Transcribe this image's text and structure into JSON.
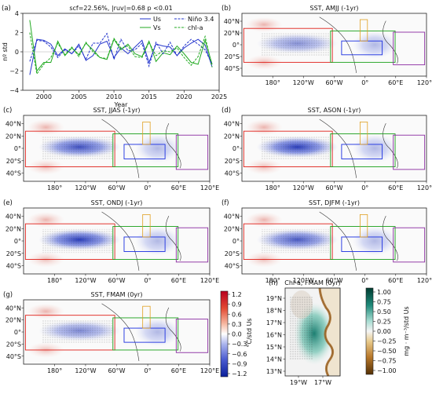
{
  "chart_data": [
    {
      "type": "line",
      "panel_label": "(a)",
      "title": "scf=22.56%, |ruv|=0.68 p <0.01",
      "xlabel": "Year",
      "ylabel": "nº std",
      "xlim": [
        1997,
        2025
      ],
      "ylim": [
        -4,
        4
      ],
      "xticks": [
        "2000",
        "2005",
        "2010",
        "2015",
        "2020",
        "2025"
      ],
      "yticks": [
        "−4",
        "−2",
        "0",
        "2",
        "4"
      ],
      "x": [
        1998,
        1999,
        2000,
        2001,
        2002,
        2003,
        2004,
        2005,
        2006,
        2007,
        2008,
        2009,
        2010,
        2011,
        2012,
        2013,
        2014,
        2015,
        2016,
        2017,
        2018,
        2019,
        2020,
        2021,
        2022,
        2023,
        2024
      ],
      "series": [
        {
          "name": "Us",
          "color": "#2233cc",
          "dash": "solid",
          "values": [
            -2.4,
            1.3,
            1.2,
            0.8,
            -0.4,
            0.3,
            -0.2,
            0.8,
            -0.9,
            -0.4,
            0.8,
            1.1,
            -0.6,
            0.4,
            -0.2,
            0.5,
            1.2,
            -1.1,
            0.8,
            0.6,
            0.5,
            -0.4,
            0.4,
            0.9,
            1.3,
            0.7,
            -1.6
          ]
        },
        {
          "name": "Vs",
          "color": "#22aa22",
          "dash": "solid",
          "values": [
            3.3,
            -2.0,
            -1.1,
            -1.1,
            1.1,
            -0.4,
            0.4,
            -0.3,
            0.9,
            0.2,
            -0.6,
            -0.8,
            1.3,
            0.2,
            0.8,
            -0.2,
            -0.5,
            1.1,
            -1.0,
            -0.1,
            -0.3,
            0.6,
            -0.2,
            -1.1,
            -1.3,
            1.2,
            -1.3
          ]
        },
        {
          "name": "Niño 3.4",
          "color": "#2233cc",
          "dash": "dashed",
          "values": [
            -1.0,
            1.2,
            1.1,
            0.5,
            -0.6,
            0.2,
            -0.2,
            0.6,
            -0.8,
            0.9,
            0.9,
            1.9,
            -0.8,
            1.3,
            0.1,
            0.2,
            0.9,
            -1.5,
            1.0,
            -0.2,
            1.0,
            -0.4,
            0.6,
            1.3,
            0.8,
            0.2,
            -1.3
          ]
        },
        {
          "name": "chl-a",
          "color": "#22aa22",
          "dash": "dashed",
          "values": [
            2.0,
            -2.3,
            -1.3,
            -0.6,
            0.9,
            -0.3,
            0.5,
            -0.5,
            1.0,
            0.0,
            -0.6,
            -0.7,
            1.4,
            0.4,
            0.6,
            -0.5,
            -0.6,
            1.0,
            -0.4,
            0.1,
            0.0,
            0.4,
            -0.6,
            -1.4,
            -0.5,
            1.6,
            -1.6
          ]
        }
      ]
    },
    {
      "type": "heatmap",
      "panels": [
        {
          "label": "(b)",
          "title": "SST, AMJJ (-1yr)"
        },
        {
          "label": "(c)",
          "title": "SST, JJAS (-1yr)"
        },
        {
          "label": "(d)",
          "title": "SST, ASON (-1yr)"
        },
        {
          "label": "(e)",
          "title": "SST, ONDJ (-1yr)"
        },
        {
          "label": "(f)",
          "title": "SST, DJFM (-1yr)"
        },
        {
          "label": "(g)",
          "title": "SST, FMAM (0yr)"
        }
      ],
      "lon_ticks": [
        "180°",
        "120°W",
        "60°W",
        "0°",
        "60°E",
        "120°E"
      ],
      "lat_ticks": [
        "40°N",
        "20°N",
        "0°",
        "20°S",
        "40°S"
      ],
      "colorbar": {
        "label": "°C/std Us",
        "ticks": [
          "1.2",
          "0.9",
          "0.6",
          "0.3",
          "0.0",
          "−0.3",
          "−0.6",
          "−0.9",
          "−1.2"
        ],
        "range": [
          -1.2,
          1.2
        ]
      }
    },
    {
      "type": "heatmap",
      "panel_label": "(h)",
      "title": "Chl-a, FMAM (0yr)",
      "lat_ticks": [
        "19°N",
        "18°N",
        "17°N",
        "16°N",
        "15°N",
        "14°N",
        "13°N"
      ],
      "lon_ticks": [
        "19°W",
        "17°W"
      ],
      "colorbar": {
        "label": "mg · m⁻³/std Us",
        "ticks": [
          "1.00",
          "0.75",
          "0.50",
          "0.25",
          "0.00",
          "−0.25",
          "−0.50",
          "−0.75",
          "−1.00"
        ],
        "range": [
          -1.0,
          1.0
        ]
      }
    }
  ]
}
